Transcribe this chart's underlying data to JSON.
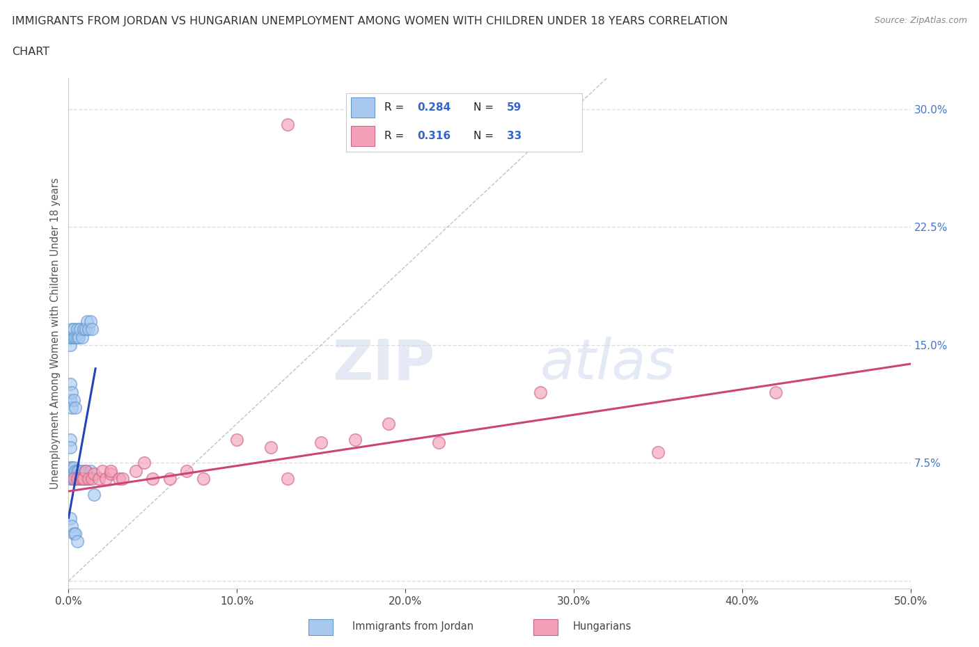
{
  "title_line1": "IMMIGRANTS FROM JORDAN VS HUNGARIAN UNEMPLOYMENT AMONG WOMEN WITH CHILDREN UNDER 18 YEARS CORRELATION",
  "title_line2": "CHART",
  "source": "Source: ZipAtlas.com",
  "ylabel": "Unemployment Among Women with Children Under 18 years",
  "xlim": [
    0.0,
    0.5
  ],
  "ylim": [
    -0.005,
    0.32
  ],
  "jordan_R": 0.284,
  "jordan_N": 59,
  "hungarian_R": 0.316,
  "hungarian_N": 33,
  "jordan_color": "#a8c8f0",
  "jordan_edge_color": "#6699cc",
  "hungarian_color": "#f4a0b8",
  "hungarian_edge_color": "#cc6688",
  "jordan_line_color": "#2244bb",
  "hungarian_line_color": "#cc4477",
  "diagonal_color": "#99aabb",
  "watermark_zip": "ZIP",
  "watermark_atlas": "atlas",
  "background_color": "#ffffff",
  "grid_color": "#dddddd",
  "jordan_x": [
    0.001,
    0.001,
    0.001,
    0.002,
    0.002,
    0.002,
    0.003,
    0.003,
    0.003,
    0.004,
    0.004,
    0.005,
    0.005,
    0.005,
    0.006,
    0.006,
    0.007,
    0.007,
    0.008,
    0.008,
    0.009,
    0.009,
    0.01,
    0.01,
    0.011,
    0.012,
    0.013,
    0.001,
    0.001,
    0.002,
    0.002,
    0.003,
    0.003,
    0.004,
    0.005,
    0.005,
    0.006,
    0.007,
    0.008,
    0.009,
    0.01,
    0.011,
    0.012,
    0.013,
    0.014,
    0.001,
    0.002,
    0.003,
    0.004,
    0.005,
    0.001,
    0.001,
    0.002,
    0.002,
    0.003,
    0.004,
    0.015,
    0.001,
    0.001
  ],
  "jordan_y": [
    0.07,
    0.065,
    0.072,
    0.068,
    0.072,
    0.065,
    0.065,
    0.068,
    0.072,
    0.065,
    0.07,
    0.065,
    0.07,
    0.065,
    0.065,
    0.07,
    0.065,
    0.068,
    0.065,
    0.07,
    0.065,
    0.068,
    0.065,
    0.07,
    0.065,
    0.065,
    0.07,
    0.15,
    0.155,
    0.155,
    0.16,
    0.155,
    0.16,
    0.155,
    0.155,
    0.16,
    0.155,
    0.16,
    0.155,
    0.16,
    0.16,
    0.165,
    0.16,
    0.165,
    0.16,
    0.04,
    0.035,
    0.03,
    0.03,
    0.025,
    0.115,
    0.125,
    0.11,
    0.12,
    0.115,
    0.11,
    0.055,
    0.09,
    0.085
  ],
  "hungarian_x": [
    0.003,
    0.005,
    0.007,
    0.008,
    0.009,
    0.01,
    0.012,
    0.014,
    0.015,
    0.018,
    0.02,
    0.022,
    0.025,
    0.025,
    0.03,
    0.032,
    0.04,
    0.045,
    0.05,
    0.06,
    0.07,
    0.08,
    0.1,
    0.12,
    0.13,
    0.15,
    0.17,
    0.19,
    0.22,
    0.28,
    0.35,
    0.42,
    0.13
  ],
  "hungarian_y": [
    0.065,
    0.065,
    0.065,
    0.065,
    0.065,
    0.07,
    0.065,
    0.065,
    0.068,
    0.065,
    0.07,
    0.065,
    0.068,
    0.07,
    0.065,
    0.065,
    0.07,
    0.075,
    0.065,
    0.065,
    0.07,
    0.065,
    0.09,
    0.085,
    0.065,
    0.088,
    0.09,
    0.1,
    0.088,
    0.12,
    0.082,
    0.12,
    0.29
  ],
  "jordan_line_x0": 0.0,
  "jordan_line_x1": 0.016,
  "jordan_line_y0": 0.04,
  "jordan_line_y1": 0.135,
  "hung_line_x0": 0.0,
  "hung_line_x1": 0.5,
  "hung_line_y0": 0.057,
  "hung_line_y1": 0.138
}
